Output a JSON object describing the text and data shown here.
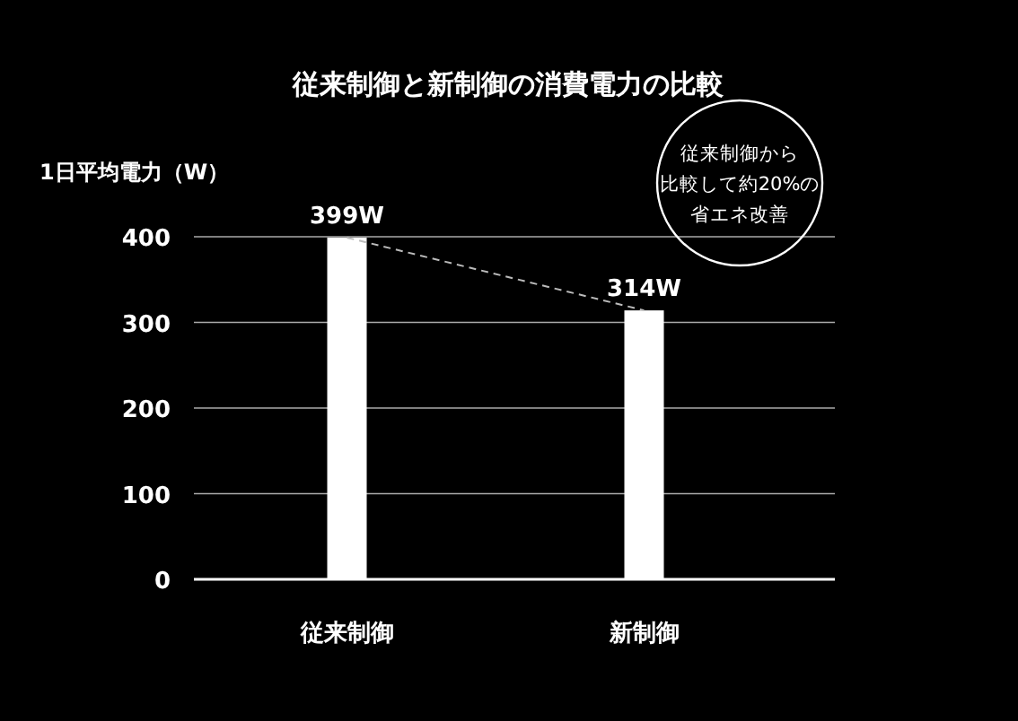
{
  "chart_data": {
    "type": "bar",
    "title": "従来制御と新制御の消費電力の比較",
    "ylabel": "1日平均電力（W）",
    "categories": [
      "従来制御",
      "新制御"
    ],
    "series": [
      {
        "color": "#ffffff",
        "values": [
          399,
          314
        ],
        "value_labels": [
          "399W",
          "314W"
        ]
      },
      {
        "type": "line",
        "color": "#bbbbbb",
        "line_style": "dashed",
        "values": [
          399,
          314
        ]
      }
    ],
    "ylim": [
      0,
      400
    ],
    "yticks": [
      0,
      100,
      200,
      300,
      400
    ],
    "grid": "y",
    "annotations": [
      "従来制御から",
      "比較して約20%の",
      "省エネ改善"
    ]
  }
}
